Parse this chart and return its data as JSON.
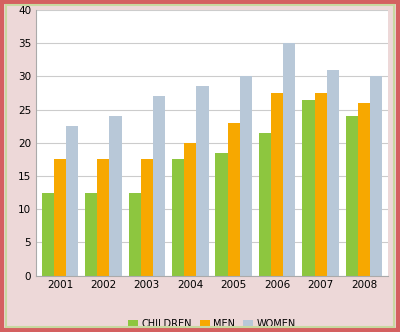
{
  "years": [
    "2001",
    "2002",
    "2003",
    "2004",
    "2005",
    "2006",
    "2007",
    "2008"
  ],
  "children": [
    12.5,
    12.5,
    12.5,
    17.5,
    18.5,
    21.5,
    26.5,
    24
  ],
  "men": [
    17.5,
    17.5,
    17.5,
    20.0,
    23.0,
    27.5,
    27.5,
    26
  ],
  "women": [
    22.5,
    24.0,
    27.0,
    28.5,
    30.0,
    35.0,
    31.0,
    30
  ],
  "children_color": "#8DC63F",
  "men_color": "#F7A800",
  "women_color": "#B8C8D8",
  "legend_labels": [
    "CHILDREN",
    "MEN",
    "WOMEN"
  ],
  "ylim": [
    0,
    40
  ],
  "yticks": [
    0,
    5,
    10,
    15,
    20,
    25,
    30,
    35,
    40
  ],
  "bar_width": 0.28,
  "grid_color": "#CCCCCC",
  "bg_color": "#FFFFFF",
  "outer_border_color": "#D46060",
  "inner_border_color": "#AAAAAA",
  "legend_fontsize": 7.0,
  "tick_fontsize": 7.5,
  "figure_bg": "#EDD8D8"
}
